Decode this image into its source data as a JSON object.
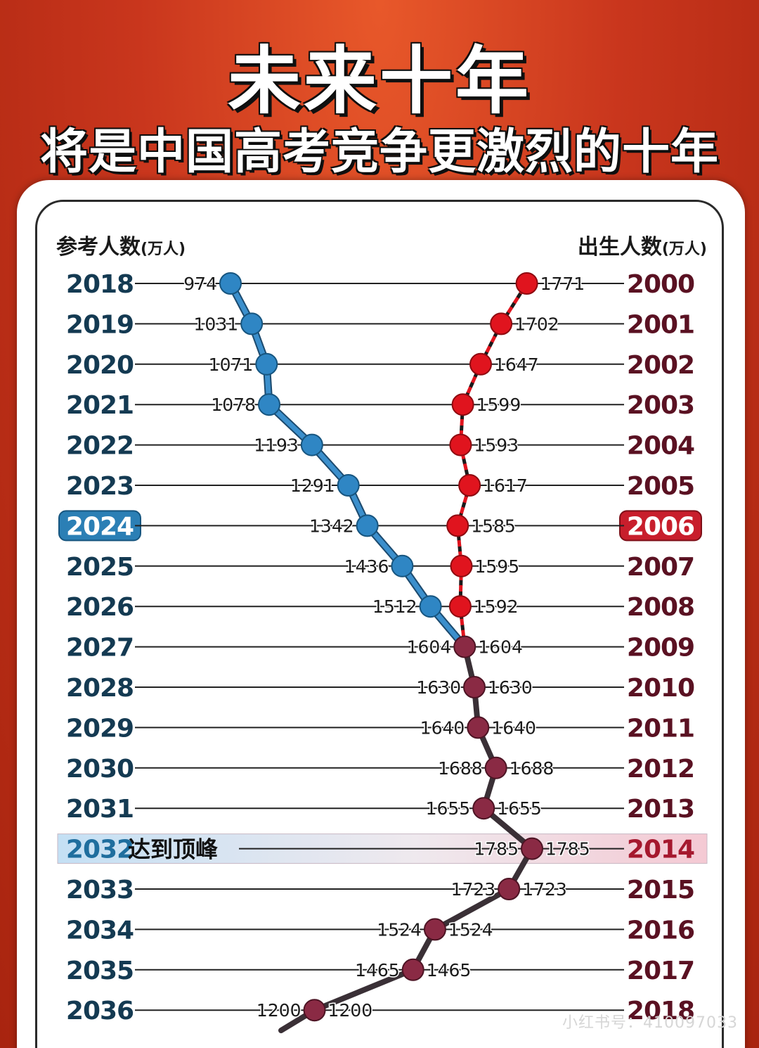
{
  "title": "未来十年",
  "subtitle": "将是中国高考竞争更激烈的十年",
  "watermark": "小红书号：410097033",
  "chart_data": {
    "type": "line",
    "left_header": "参考人数",
    "left_unit": "(万人)",
    "right_header": "出生人数",
    "right_unit": "(万人)",
    "exam_years": [
      "2018",
      "2019",
      "2020",
      "2021",
      "2022",
      "2023",
      "2024",
      "2025",
      "2026",
      "2027",
      "2028",
      "2029",
      "2030",
      "2031",
      "2032",
      "2033",
      "2034",
      "2035",
      "2036"
    ],
    "birth_years": [
      "2000",
      "2001",
      "2002",
      "2003",
      "2004",
      "2005",
      "2006",
      "2007",
      "2008",
      "2009",
      "2010",
      "2011",
      "2012",
      "2013",
      "2014",
      "2015",
      "2016",
      "2017",
      "2018"
    ],
    "peak_label": "达到顶峰",
    "peak_index": 14,
    "current_index": 6,
    "series": [
      {
        "name": "参考人数",
        "values": [
          974,
          1031,
          1071,
          1078,
          1193,
          1291,
          1342,
          1436,
          1512,
          null,
          null,
          null,
          null,
          null,
          null,
          null,
          null,
          null,
          null
        ],
        "color": "#2f86c4",
        "line": "#2a6f9e"
      },
      {
        "name": "出生人数",
        "values": [
          1771,
          1702,
          1647,
          1599,
          1593,
          1617,
          1585,
          1595,
          1592,
          1604,
          1630,
          1640,
          1688,
          1655,
          1785,
          1723,
          1524,
          1465,
          1200
        ],
        "color": "#e0141e",
        "future_color": "#8a2a44",
        "line": "#3a3036"
      }
    ],
    "left_labels": [
      "974",
      "1031",
      "1071",
      "1078",
      "1193",
      "1291",
      "1342",
      "1436",
      "1512",
      "1604",
      "1630",
      "1640",
      "1688",
      "1655",
      "1785",
      "1723",
      "1524",
      "1465",
      "1200"
    ],
    "right_labels": [
      "1771",
      "1702",
      "1647",
      "1599",
      "1593",
      "1617",
      "1585",
      "1595",
      "1592",
      "1604",
      "1630",
      "1640",
      "1688",
      "1655",
      "1785",
      "1723",
      "1524",
      "1465",
      "1200"
    ],
    "x_range": [
      900,
      1800
    ]
  }
}
